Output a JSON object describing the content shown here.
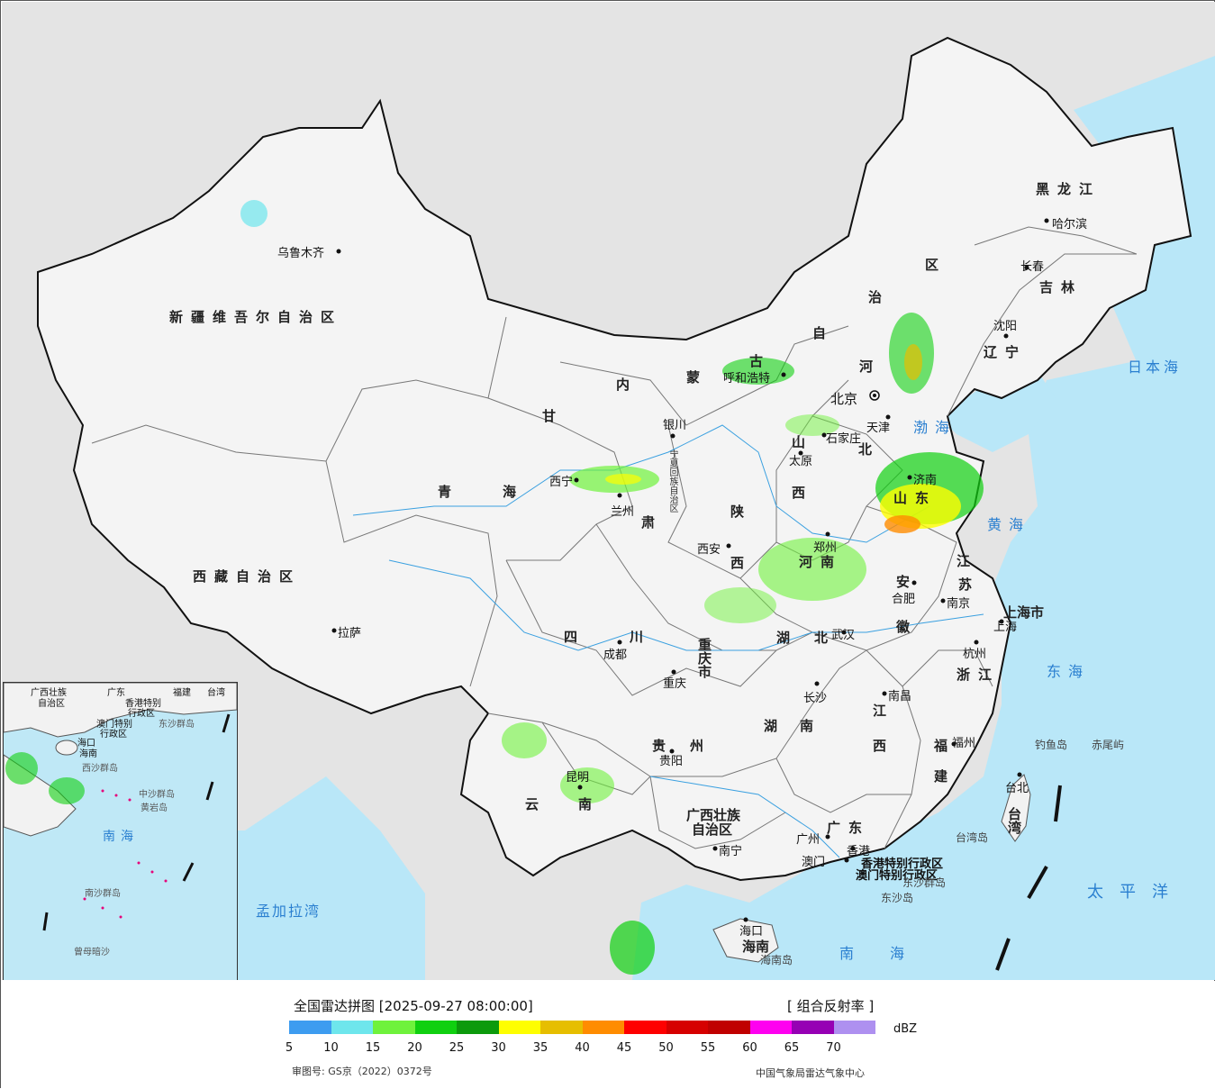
{
  "legend": {
    "title": "全国雷达拼图 [2025-09-27 08:00:00]",
    "product": "[ 组合反射率 ]",
    "unit": "dBZ",
    "ticks": [
      "5",
      "10",
      "15",
      "20",
      "25",
      "30",
      "35",
      "40",
      "45",
      "50",
      "55",
      "60",
      "65",
      "70"
    ],
    "colors": [
      "#3d9cf0",
      "#6ee6ec",
      "#6ff23c",
      "#10d010",
      "#0c9a0c",
      "#fefe00",
      "#e6be00",
      "#ff8c00",
      "#fe0000",
      "#d60000",
      "#c00000",
      "#fe00f0",
      "#9600b4",
      "#ae90f0"
    ],
    "map_approval": "审图号: GS京（2022）0372号",
    "source": "中国气象局雷达气象中心"
  },
  "regions": {
    "xinjiang": "新疆维吾尔自治区",
    "xizang": "西藏自治区",
    "qinghai_1": "青",
    "qinghai_2": "海",
    "gansu_1": "甘",
    "gansu_2": "肃",
    "neimenggu": [
      "内",
      "蒙",
      "古",
      "自",
      "治",
      "区"
    ],
    "heilongjiang": "黑龙江",
    "jilin": "吉林",
    "liaoning": "辽宁",
    "hebei_1": "河",
    "hebei_2": "北",
    "shanxi_1": "山",
    "shanxi_2": "西",
    "shaanxi_1": "陕",
    "shaanxi_2": "西",
    "shandong": "山东",
    "henan": "河南",
    "jiangsu_1": "江",
    "jiangsu_2": "苏",
    "anhui_1": "安",
    "anhui_2": "徽",
    "shanghai": "上海市",
    "zhejiang": "浙江",
    "hubei_1": "湖",
    "hubei_2": "北",
    "chongqing": "重庆市",
    "sichuan_1": "四",
    "sichuan_2": "川",
    "guizhou_1": "贵",
    "guizhou_2": "州",
    "yunnan_1": "云",
    "yunnan_2": "南",
    "hunan_1": "湖",
    "hunan_2": "南",
    "jiangxi_1": "江",
    "jiangxi_2": "西",
    "fujian_1": "福",
    "fujian_2": "建",
    "guangxi_1": "广西壮族",
    "guangxi_2": "自治区",
    "guangdong": "广东",
    "hainan": "海南",
    "taiwan": "台湾",
    "ningxia": "宁夏回族自治区",
    "beijing": "北京",
    "tianjin": "天津",
    "hongkong": "香港特别行政区",
    "macau": "澳门特别行政区"
  },
  "cities": {
    "urumqi": "乌鲁木齐",
    "lhasa": "拉萨",
    "xining": "西宁",
    "lanzhou": "兰州",
    "yinchuan": "银川",
    "hohhot": "呼和浩特",
    "harbin": "哈尔滨",
    "changchun": "长春",
    "shenyang": "沈阳",
    "shijiazhuang": "石家庄",
    "taiyuan": "太原",
    "jinan": "济南",
    "xian": "西安",
    "zhengzhou": "郑州",
    "hefei": "合肥",
    "nanjing": "南京",
    "shanghai": "上海",
    "hangzhou": "杭州",
    "wuhan": "武汉",
    "chengdu": "成都",
    "chongqing": "重庆",
    "changsha": "长沙",
    "nanchang": "南昌",
    "fuzhou": "福州",
    "taibei": "台北",
    "guiyang": "贵阳",
    "kunming": "昆明",
    "nanning": "南宁",
    "guangzhou": "广州",
    "aomen": "澳门",
    "xianggang": "香港",
    "haikou": "海口"
  },
  "seas": {
    "bohai": "渤海",
    "huanghai": "黄海",
    "donghai": "东海",
    "nanhai": "南海",
    "riben": "日本海",
    "taipingyang": "太平洋",
    "mengjiala": "孟加拉湾"
  },
  "islands": {
    "diaoyu": "钓鱼岛",
    "chiwei": "赤尾屿",
    "taiwan_dao": "台湾岛",
    "hainan_dao": "海南岛",
    "dongsha_qundao": "东沙群岛",
    "dongsha_dao": "东沙岛"
  },
  "inset": {
    "labels": [
      "广西壮族",
      "自治区",
      "广东",
      "福建",
      "台湾",
      "香港特别",
      "行政区",
      "澳门特别",
      "行政区",
      "东沙群岛",
      "海口",
      "海南",
      "西沙群岛",
      "中沙群岛",
      "黄岩岛",
      "南",
      "海",
      "南沙群岛",
      "曾母暗沙"
    ]
  }
}
